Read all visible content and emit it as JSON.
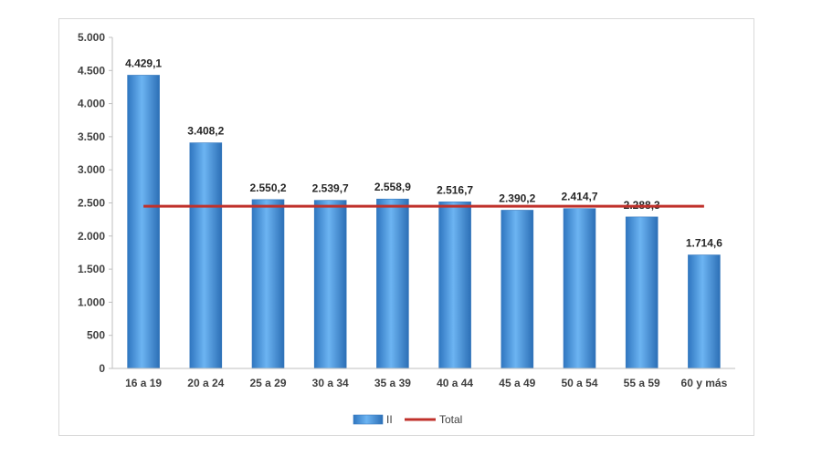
{
  "chart_data": {
    "type": "bar",
    "categories": [
      "16 a 19",
      "20 a 24",
      "25 a 29",
      "30 a 34",
      "35 a 39",
      "40 a 44",
      "45 a 49",
      "50 a 54",
      "55 a 59",
      "60 y más"
    ],
    "series": [
      {
        "name": "II",
        "type": "bar",
        "color": "#4a9ae0",
        "values": [
          4429.1,
          3408.2,
          2550.2,
          2539.7,
          2558.9,
          2516.7,
          2390.2,
          2414.7,
          2288.3,
          1714.6
        ],
        "labels": [
          "4.429,1",
          "3.408,2",
          "2.550,2",
          "2.539,7",
          "2.558,9",
          "2.516,7",
          "2.390,2",
          "2.414,7",
          "2.288,3",
          "1.714,6"
        ]
      },
      {
        "name": "Total",
        "type": "line",
        "color": "#c0312b",
        "value": 2450
      }
    ],
    "y_ticks": [
      0,
      500,
      1000,
      1500,
      2000,
      2500,
      3000,
      3500,
      4000,
      4500,
      5000
    ],
    "y_tick_labels": [
      "0",
      "500",
      "1.000",
      "1.500",
      "2.000",
      "2.500",
      "3.000",
      "3.500",
      "4.000",
      "4.500",
      "5.000"
    ],
    "ylim": [
      0,
      5000
    ],
    "grid": false,
    "legend_position": "bottom"
  }
}
